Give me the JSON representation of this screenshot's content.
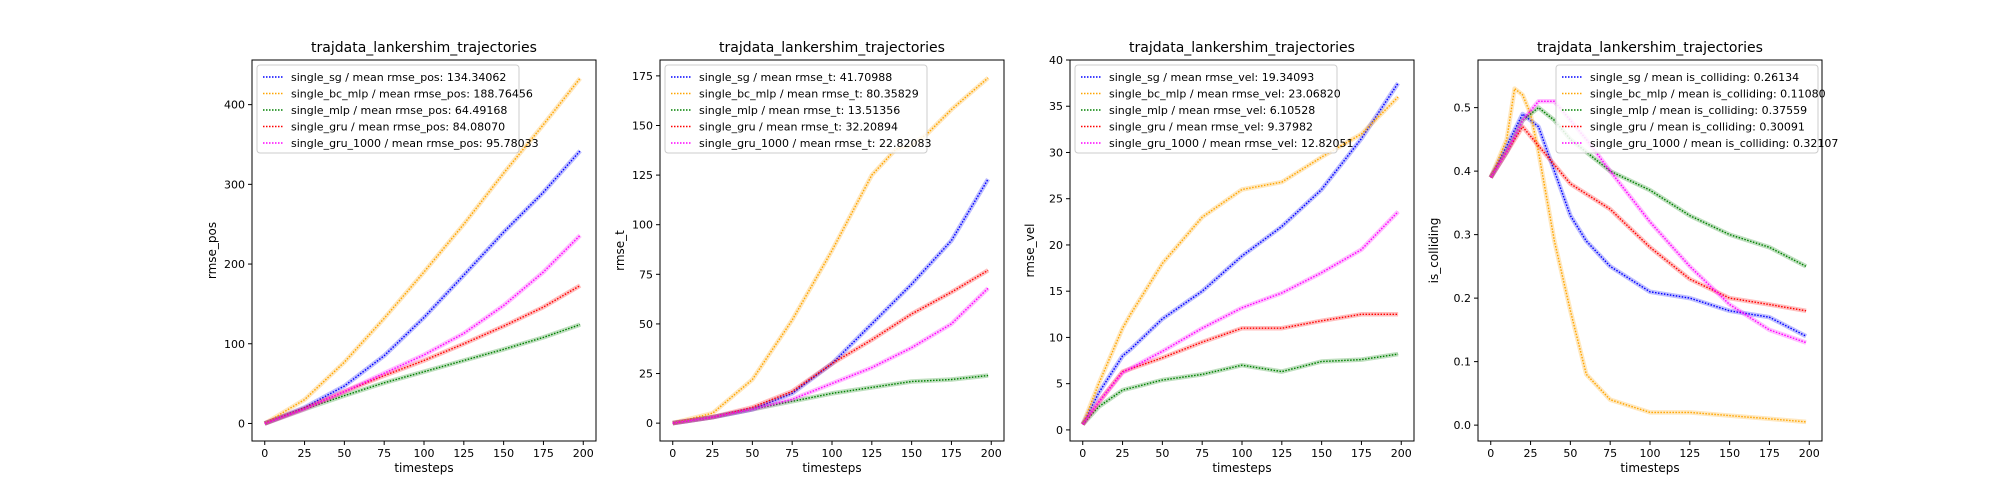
{
  "colors": {
    "single_sg": "#0000ff",
    "single_bc_mlp": "#ffa500",
    "single_mlp": "#008000",
    "single_gru": "#ff0000",
    "single_gru_1000": "#ff00ff"
  },
  "chart_data": [
    {
      "type": "line",
      "title": "trajdata_lankershim_trajectories",
      "xlabel": "timesteps",
      "ylabel": "rmse_pos",
      "xlim": [
        -8,
        208
      ],
      "ylim": [
        -22,
        456
      ],
      "xticks": [
        0,
        25,
        50,
        75,
        100,
        125,
        150,
        175,
        200
      ],
      "yticks": [
        0,
        100,
        200,
        300,
        400
      ],
      "grid": false,
      "legend_loc": "upper-left",
      "series": [
        {
          "key": "single_sg",
          "label": "single_sg / mean rmse_pos: 134.34062",
          "x": [
            0,
            25,
            50,
            75,
            100,
            125,
            150,
            175,
            198
          ],
          "y": [
            0,
            20,
            47,
            85,
            133,
            186,
            240,
            290,
            342
          ]
        },
        {
          "key": "single_bc_mlp",
          "label": "single_bc_mlp / mean rmse_pos: 188.76456",
          "x": [
            0,
            25,
            50,
            75,
            100,
            125,
            150,
            175,
            198
          ],
          "y": [
            0,
            30,
            77,
            132,
            190,
            250,
            314,
            375,
            433
          ]
        },
        {
          "key": "single_mlp",
          "label": "single_mlp / mean rmse_pos: 64.49168",
          "x": [
            0,
            25,
            50,
            75,
            100,
            125,
            150,
            175,
            198
          ],
          "y": [
            0,
            18,
            35,
            51,
            65,
            79,
            93,
            108,
            124
          ]
        },
        {
          "key": "single_gru",
          "label": "single_gru / mean rmse_pos: 84.08070",
          "x": [
            0,
            25,
            50,
            75,
            100,
            125,
            150,
            175,
            198
          ],
          "y": [
            0,
            19,
            40,
            60,
            79,
            100,
            122,
            146,
            173
          ]
        },
        {
          "key": "single_gru_1000",
          "label": "single_gru_1000 / mean rmse_pos: 95.78033",
          "x": [
            0,
            25,
            50,
            75,
            100,
            125,
            150,
            175,
            198
          ],
          "y": [
            0,
            18,
            40,
            63,
            86,
            113,
            148,
            190,
            236
          ]
        }
      ]
    },
    {
      "type": "line",
      "title": "trajdata_lankershim_trajectories",
      "xlabel": "timesteps",
      "ylabel": "rmse_t",
      "xlim": [
        -8,
        208
      ],
      "ylim": [
        -9,
        183
      ],
      "xticks": [
        0,
        25,
        50,
        75,
        100,
        125,
        150,
        175,
        200
      ],
      "yticks": [
        0,
        25,
        50,
        75,
        100,
        125,
        150,
        175
      ],
      "grid": false,
      "legend_loc": "upper-left",
      "series": [
        {
          "key": "single_sg",
          "label": "single_sg / mean rmse_t: 41.70988",
          "x": [
            0,
            25,
            50,
            75,
            100,
            125,
            150,
            175,
            198
          ],
          "y": [
            0,
            3,
            7,
            15,
            30,
            50,
            70,
            92,
            123
          ]
        },
        {
          "key": "single_bc_mlp",
          "label": "single_bc_mlp / mean rmse_t: 80.35829",
          "x": [
            0,
            25,
            50,
            75,
            100,
            125,
            140,
            150,
            160,
            175,
            185,
            198
          ],
          "y": [
            0,
            5,
            22,
            52,
            87,
            125,
            138,
            140,
            146,
            158,
            165,
            174
          ]
        },
        {
          "key": "single_mlp",
          "label": "single_mlp / mean rmse_t: 13.51356",
          "x": [
            0,
            25,
            50,
            75,
            100,
            125,
            150,
            175,
            198
          ],
          "y": [
            0,
            3,
            7,
            11,
            15,
            18,
            21,
            22,
            24
          ]
        },
        {
          "key": "single_gru",
          "label": "single_gru / mean rmse_t: 32.20894",
          "x": [
            0,
            25,
            50,
            75,
            100,
            125,
            150,
            175,
            198
          ],
          "y": [
            0,
            3,
            8,
            16,
            30,
            42,
            55,
            66,
            77
          ]
        },
        {
          "key": "single_gru_1000",
          "label": "single_gru_1000 / mean rmse_t: 22.82083",
          "x": [
            0,
            25,
            50,
            75,
            100,
            125,
            150,
            175,
            198
          ],
          "y": [
            0,
            3,
            7,
            12,
            20,
            28,
            38,
            50,
            68
          ]
        }
      ]
    },
    {
      "type": "line",
      "title": "trajdata_lankershim_trajectories",
      "xlabel": "timesteps",
      "ylabel": "rmse_vel",
      "xlim": [
        -8,
        208
      ],
      "ylim": [
        -1.2,
        40
      ],
      "xticks": [
        0,
        25,
        50,
        75,
        100,
        125,
        150,
        175,
        200
      ],
      "yticks": [
        0,
        5,
        10,
        15,
        20,
        25,
        30,
        35,
        40
      ],
      "grid": false,
      "legend_loc": "upper-left",
      "series": [
        {
          "key": "single_sg",
          "label": "single_sg / mean rmse_vel: 19.34093",
          "x": [
            0,
            10,
            25,
            30,
            50,
            75,
            100,
            125,
            150,
            175,
            198
          ],
          "y": [
            0.6,
            4,
            8,
            8.7,
            12,
            15,
            18.8,
            22,
            26,
            31.5,
            37.5
          ]
        },
        {
          "key": "single_bc_mlp",
          "label": "single_bc_mlp / mean rmse_vel: 23.06820",
          "x": [
            0,
            10,
            25,
            30,
            50,
            75,
            100,
            125,
            150,
            175,
            198
          ],
          "y": [
            0.6,
            5,
            11,
            12.5,
            18,
            23,
            26,
            26.8,
            29.5,
            32,
            36
          ]
        },
        {
          "key": "single_mlp",
          "label": "single_mlp / mean rmse_vel: 6.10528",
          "x": [
            0,
            10,
            25,
            50,
            75,
            100,
            125,
            150,
            175,
            198
          ],
          "y": [
            0.6,
            2.5,
            4.3,
            5.4,
            6,
            7,
            6.3,
            7.4,
            7.6,
            8.2
          ]
        },
        {
          "key": "single_gru",
          "label": "single_gru / mean rmse_vel: 9.37982",
          "x": [
            0,
            10,
            25,
            50,
            75,
            100,
            125,
            150,
            175,
            198
          ],
          "y": [
            0.6,
            3,
            6.3,
            7.8,
            9.5,
            11,
            11,
            11.8,
            12.5,
            12.5
          ]
        },
        {
          "key": "single_gru_1000",
          "label": "single_gru_1000 / mean rmse_vel: 12.82051",
          "x": [
            0,
            10,
            25,
            50,
            75,
            100,
            125,
            150,
            175,
            198
          ],
          "y": [
            0.6,
            3,
            6.2,
            8.5,
            11,
            13.2,
            14.8,
            17,
            19.5,
            23.6
          ]
        }
      ]
    },
    {
      "type": "line",
      "title": "trajdata_lankershim_trajectories",
      "xlabel": "timesteps",
      "ylabel": "is_colliding",
      "xlim": [
        -8,
        208
      ],
      "ylim": [
        -0.025,
        0.575
      ],
      "xticks": [
        0,
        25,
        50,
        75,
        100,
        125,
        150,
        175,
        200
      ],
      "yticks": [
        0.0,
        0.1,
        0.2,
        0.3,
        0.4,
        0.5
      ],
      "grid": false,
      "legend_loc": "upper-right",
      "series": [
        {
          "key": "single_sg",
          "label": "single_sg / mean is_colliding: 0.26134",
          "x": [
            0,
            10,
            20,
            30,
            40,
            50,
            60,
            75,
            100,
            125,
            150,
            175,
            198
          ],
          "y": [
            0.39,
            0.44,
            0.49,
            0.47,
            0.4,
            0.33,
            0.29,
            0.25,
            0.21,
            0.2,
            0.18,
            0.17,
            0.14
          ]
        },
        {
          "key": "single_bc_mlp",
          "label": "single_bc_mlp / mean is_colliding: 0.11080",
          "x": [
            0,
            10,
            15,
            20,
            25,
            30,
            40,
            50,
            60,
            75,
            100,
            125,
            150,
            175,
            198
          ],
          "y": [
            0.39,
            0.45,
            0.53,
            0.52,
            0.49,
            0.43,
            0.29,
            0.18,
            0.08,
            0.04,
            0.02,
            0.02,
            0.015,
            0.01,
            0.005
          ]
        },
        {
          "key": "single_mlp",
          "label": "single_mlp / mean is_colliding: 0.37559",
          "x": [
            0,
            10,
            20,
            30,
            40,
            50,
            75,
            100,
            125,
            150,
            175,
            198
          ],
          "y": [
            0.39,
            0.43,
            0.48,
            0.5,
            0.48,
            0.45,
            0.4,
            0.37,
            0.33,
            0.3,
            0.28,
            0.25
          ]
        },
        {
          "key": "single_gru",
          "label": "single_gru / mean is_colliding: 0.30091",
          "x": [
            0,
            10,
            20,
            30,
            40,
            50,
            75,
            100,
            125,
            150,
            175,
            198
          ],
          "y": [
            0.39,
            0.43,
            0.47,
            0.44,
            0.41,
            0.38,
            0.34,
            0.28,
            0.23,
            0.2,
            0.19,
            0.18
          ]
        },
        {
          "key": "single_gru_1000",
          "label": "single_gru_1000 / mean is_colliding: 0.32107",
          "x": [
            0,
            10,
            20,
            30,
            40,
            50,
            60,
            75,
            100,
            125,
            150,
            175,
            198
          ],
          "y": [
            0.39,
            0.43,
            0.48,
            0.51,
            0.51,
            0.48,
            0.45,
            0.4,
            0.32,
            0.25,
            0.19,
            0.15,
            0.13
          ]
        }
      ]
    }
  ]
}
